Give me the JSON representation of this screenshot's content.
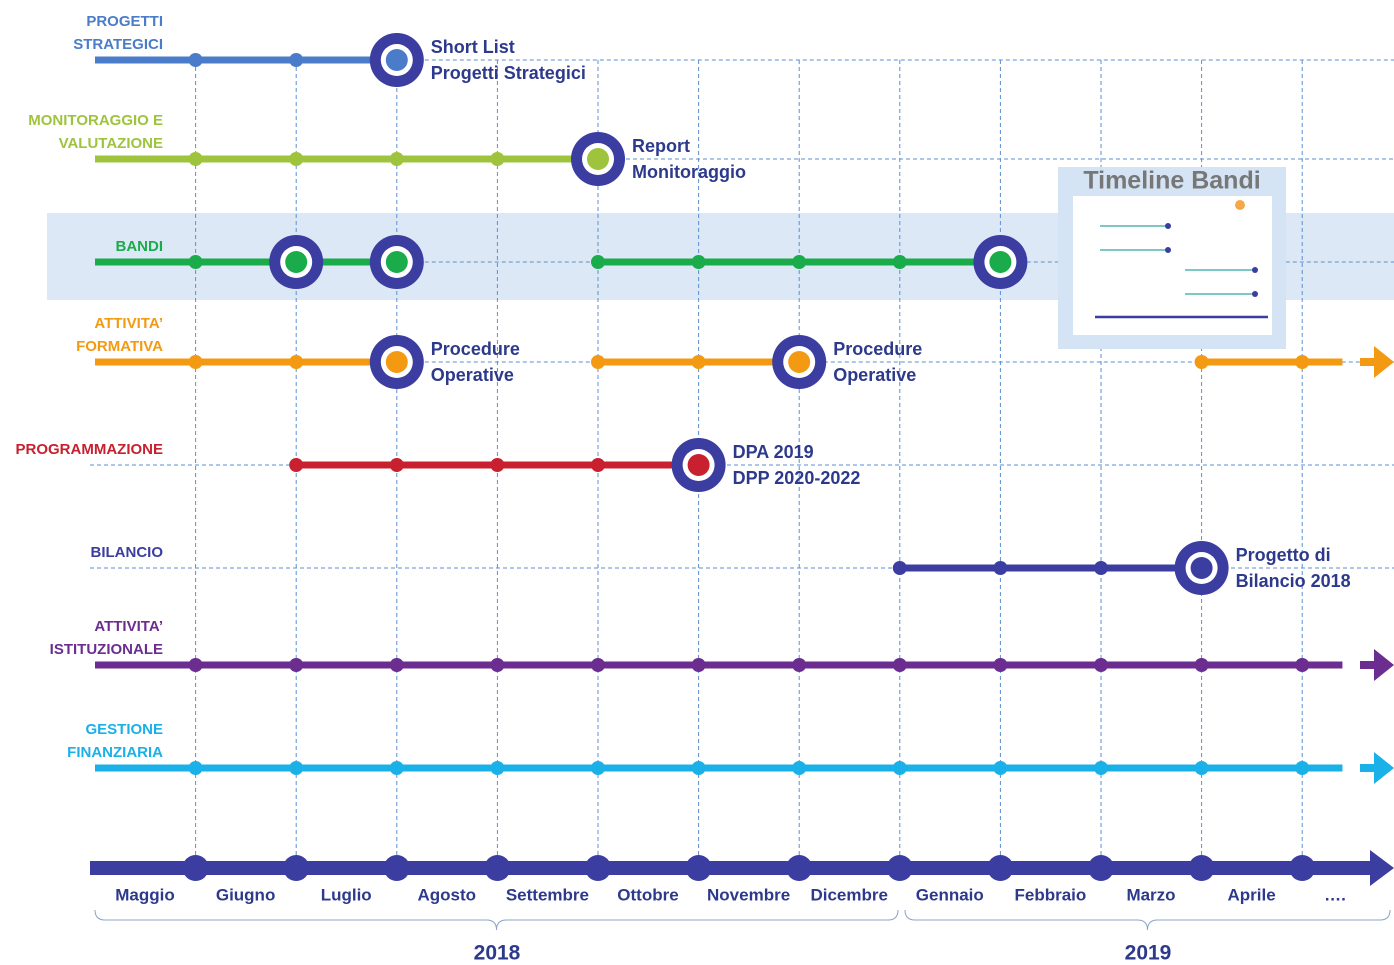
{
  "rows": [
    {
      "label": [
        "PROGETTI",
        "STRATEGICI"
      ],
      "milestones": [
        [
          "Short List",
          "Progetti Strategici"
        ]
      ]
    },
    {
      "label": [
        "MONITORAGGIO E",
        "VALUTAZIONE"
      ],
      "milestones": [
        [
          "Report",
          "Monitoraggio"
        ]
      ]
    },
    {
      "label": [
        "BANDI"
      ],
      "milestones": []
    },
    {
      "label": [
        "ATTIVITA’",
        "FORMATIVA"
      ],
      "milestones": [
        [
          "Procedure",
          "Operative"
        ],
        [
          "Procedure",
          "Operative"
        ]
      ]
    },
    {
      "label": [
        "PROGRAMMAZIONE"
      ],
      "milestones": [
        [
          "DPA 2019",
          "DPP 2020-2022"
        ]
      ]
    },
    {
      "label": [
        "BILANCIO"
      ],
      "milestones": [
        [
          "Progetto di",
          "Bilancio  2018"
        ]
      ]
    },
    {
      "label": [
        "ATTIVITA’",
        "ISTITUZIONALE"
      ],
      "milestones": []
    },
    {
      "label": [
        "GESTIONE",
        "FINANZIARIA"
      ],
      "milestones": []
    }
  ],
  "months": [
    "Maggio",
    "Giugno",
    "Luglio",
    "Agosto",
    "Settembre",
    "Ottobre",
    "Novembre",
    "Dicembre",
    "Gennaio",
    "Febbraio",
    "Marzo",
    "Aprile"
  ],
  "more": "….",
  "years": [
    "2018",
    "2019"
  ],
  "thumbnail": {
    "title": "Timeline Bandi"
  }
}
